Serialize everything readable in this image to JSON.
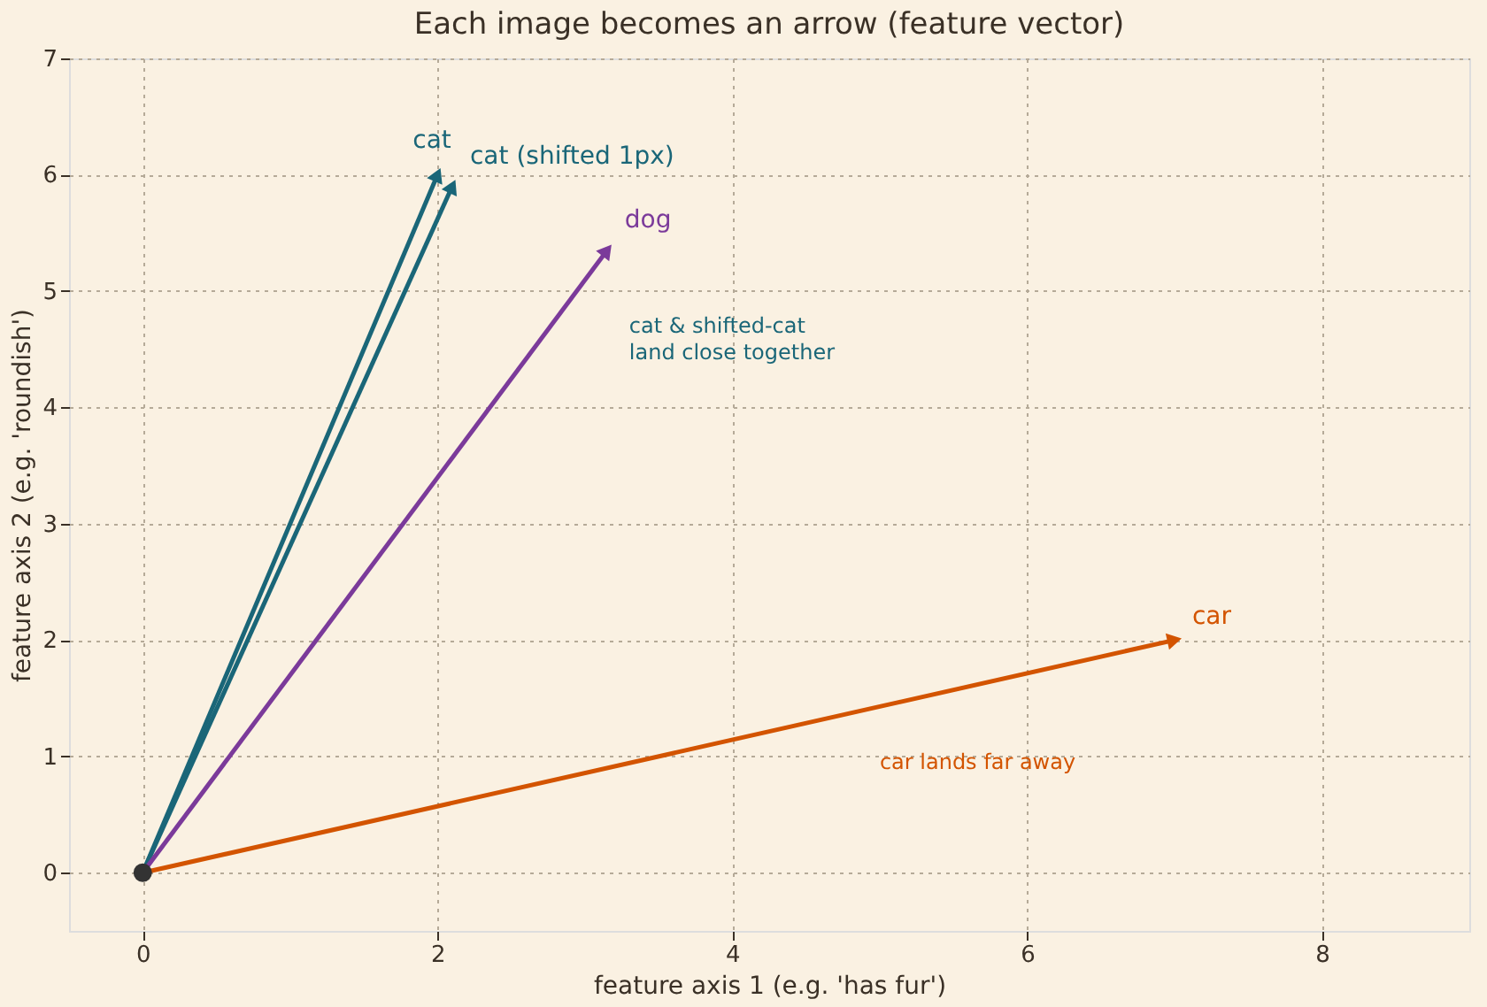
{
  "chart_data": {
    "type": "line",
    "title": "Each image becomes an arrow (feature vector)",
    "xlabel": "feature axis 1 (e.g. 'has fur')",
    "ylabel": "feature axis 2 (e.g. 'roundish')",
    "series": [
      {
        "name": "cat",
        "color": "#1a6678",
        "x": [
          0,
          2
        ],
        "values": [
          0,
          6
        ]
      },
      {
        "name": "cat (shifted 1px)",
        "color": "#1a6678",
        "x": [
          0,
          2.1
        ],
        "values": [
          0,
          5.9
        ]
      },
      {
        "name": "dog",
        "color": "#7b3a9a",
        "x": [
          0,
          3.15
        ],
        "values": [
          0,
          5.35
        ]
      },
      {
        "name": "car",
        "color": "#d35400",
        "x": [
          0,
          7
        ],
        "values": [
          0,
          2
        ]
      },
      {
        "type": "scatter",
        "color": "#333333",
        "x": [
          0
        ],
        "values": [
          0
        ],
        "marker": "circle"
      }
    ],
    "annotations": [
      "cat & shifted-cat\nland close together",
      "car lands far away"
    ],
    "xlim": [
      -0.5,
      9
    ],
    "ylim": [
      -0.5,
      7
    ],
    "xticks": [
      0,
      2,
      4,
      6,
      8
    ],
    "yticks": [
      0,
      1,
      2,
      3,
      4,
      5,
      6,
      7
    ],
    "grid": true,
    "legend": false,
    "line_style": "solid"
  }
}
